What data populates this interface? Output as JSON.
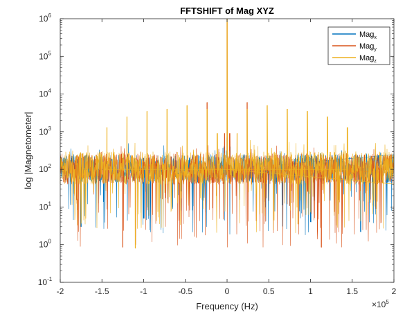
{
  "chart_data": {
    "type": "line",
    "title": "FFTSHIFT of Mag XYZ",
    "xlabel": "Frequency (Hz)",
    "ylabel": "log |Magnetometer|",
    "x_multiplier_label": "×10",
    "x_multiplier_exp": "5",
    "xlim": [
      -200000,
      200000
    ],
    "ylim": [
      0.1,
      1000000
    ],
    "yscale": "log",
    "grid": false,
    "legend_position": "top-right",
    "x_ticks": [
      {
        "value": -200000,
        "label": "-2"
      },
      {
        "value": -150000,
        "label": "-1.5"
      },
      {
        "value": -100000,
        "label": "-1"
      },
      {
        "value": -50000,
        "label": "-0.5"
      },
      {
        "value": 0,
        "label": "0"
      },
      {
        "value": 50000,
        "label": "0.5"
      },
      {
        "value": 100000,
        "label": "1"
      },
      {
        "value": 150000,
        "label": "1.5"
      },
      {
        "value": 200000,
        "label": "2"
      }
    ],
    "y_ticks": [
      {
        "value": 0.1,
        "base": "10",
        "exp": "-1"
      },
      {
        "value": 1,
        "base": "10",
        "exp": "0"
      },
      {
        "value": 10,
        "base": "10",
        "exp": "1"
      },
      {
        "value": 100,
        "base": "10",
        "exp": "2"
      },
      {
        "value": 1000,
        "base": "10",
        "exp": "3"
      },
      {
        "value": 10000,
        "base": "10",
        "exp": "4"
      },
      {
        "value": 100000,
        "base": "10",
        "exp": "5"
      },
      {
        "value": 1000000,
        "base": "10",
        "exp": "6"
      }
    ],
    "series": [
      {
        "name": "Mag",
        "subscript": "x",
        "color": "#0072BD",
        "noise_floor": {
          "typical": [
            45,
            250
          ],
          "min": 1.8,
          "max": 500
        },
        "spikes": [
          {
            "x": 0,
            "y": 700
          },
          {
            "x": -3500,
            "y": 400
          },
          {
            "x": 3500,
            "y": 400
          },
          {
            "x": -100000,
            "y": 5
          },
          {
            "x": 100000,
            "y": 4
          },
          {
            "x": -175000,
            "y": 3
          },
          {
            "x": 160000,
            "y": 2.2
          }
        ]
      },
      {
        "name": "Mag",
        "subscript": "y",
        "color": "#D95319",
        "noise_floor": {
          "typical": [
            40,
            260
          ],
          "min": 0.85,
          "max": 450
        },
        "spikes": [
          {
            "x": 0,
            "y": 800000
          },
          {
            "x": -3000,
            "y": 900
          },
          {
            "x": 3000,
            "y": 900
          },
          {
            "x": -24000,
            "y": 6000
          },
          {
            "x": 24000,
            "y": 6000
          },
          {
            "x": -125000,
            "y": 0.85
          },
          {
            "x": 113000,
            "y": 0.85
          }
        ]
      },
      {
        "name": "Mag",
        "subscript": "z",
        "color": "#EDB120",
        "noise_floor": {
          "typical": [
            40,
            300
          ],
          "min": 2,
          "max": 600
        },
        "spikes": [
          {
            "x": 0,
            "y": 1000000
          },
          {
            "x": -24000,
            "y": 4000
          },
          {
            "x": 24000,
            "y": 4000
          },
          {
            "x": -48000,
            "y": 5000
          },
          {
            "x": 48000,
            "y": 5000
          },
          {
            "x": -72000,
            "y": 4000
          },
          {
            "x": 72000,
            "y": 4000
          },
          {
            "x": -96000,
            "y": 3500
          },
          {
            "x": 96000,
            "y": 3500
          },
          {
            "x": -120000,
            "y": 2500
          },
          {
            "x": 120000,
            "y": 2500
          },
          {
            "x": -144000,
            "y": 1300
          },
          {
            "x": 144000,
            "y": 1300
          },
          {
            "x": -12000,
            "y": 900
          },
          {
            "x": 12000,
            "y": 900
          },
          {
            "x": -110000,
            "y": 0.8
          },
          {
            "x": 85000,
            "y": 3.5
          }
        ]
      }
    ]
  }
}
